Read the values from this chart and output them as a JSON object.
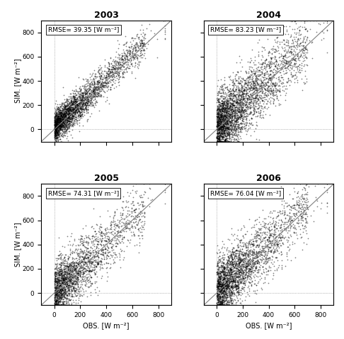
{
  "years": [
    "2003",
    "2004",
    "2005",
    "2006"
  ],
  "rmse_values": [
    39.35,
    83.23,
    74.31,
    76.04
  ],
  "n_points": [
    3000,
    3500,
    2500,
    3000
  ],
  "xlim": [
    -100,
    900
  ],
  "ylim": [
    -100,
    900
  ],
  "xticks": [
    0,
    200,
    400,
    600,
    800
  ],
  "yticks": [
    0,
    200,
    400,
    600,
    800
  ],
  "xlabel": "OBS. [W m⁻²]",
  "ylabel": "SIM. [W m⁻²]",
  "dot_color": "black",
  "dot_size": 1.5,
  "dot_alpha": 0.5,
  "line_color": "gray",
  "background_color": "white",
  "seeds": [
    42,
    123,
    7,
    99
  ]
}
